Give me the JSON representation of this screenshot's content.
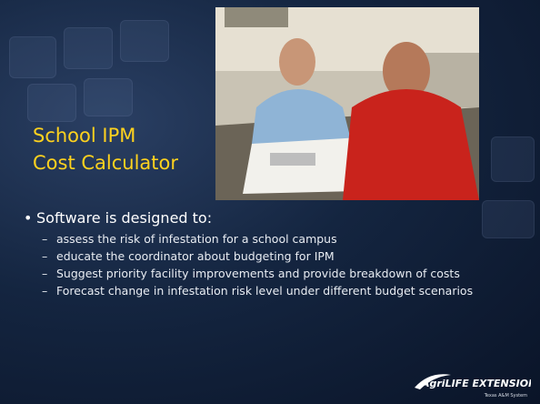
{
  "slide": {
    "title": [
      "School IPM",
      "Cost Calculator"
    ],
    "bullet": "Software is designed to:",
    "sub_bullets": [
      "assess the risk of infestation for a school campus",
      "educate the coordinator about budgeting for IPM",
      "Suggest priority facility improvements and provide breakdown of costs",
      "Forecast change in infestation risk level under different budget scenarios"
    ],
    "logo": {
      "name": "AgriLIFE EXTENSION",
      "tagline": "Texas A&M System"
    }
  }
}
